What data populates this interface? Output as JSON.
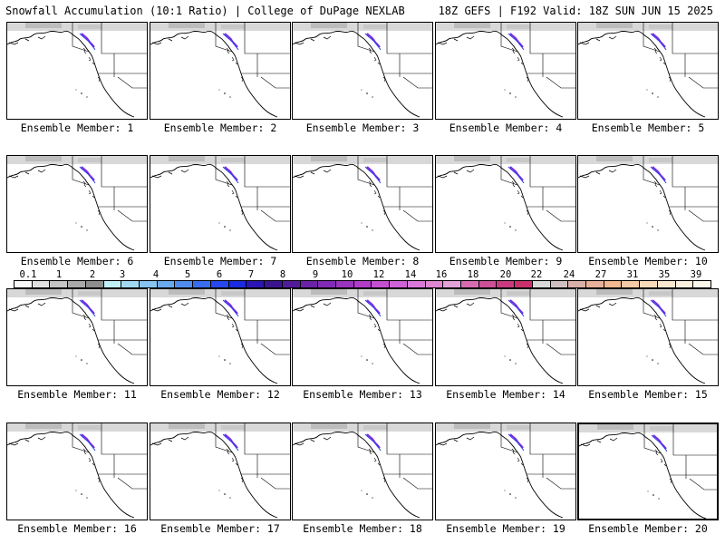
{
  "header": {
    "left": "Snowfall Accumulation (10:1 Ratio) | College of DuPage NEXLAB",
    "right": "18Z GEFS | F192 Valid: 18Z SUN JUN 15 2025"
  },
  "colorbar": {
    "labels": [
      "0.1",
      "1",
      "2",
      "3",
      "4",
      "5",
      "6",
      "7",
      "8",
      "9",
      "10",
      "12",
      "14",
      "16",
      "18",
      "20",
      "22",
      "24",
      "27",
      "31",
      "35",
      "39"
    ],
    "colors": [
      "#f7f7f7",
      "#e0e0e0",
      "#c4c4c4",
      "#a9a9a9",
      "#8e8e8e",
      "#bfeff7",
      "#a0d8f2",
      "#86c3f0",
      "#6aa9ee",
      "#4f8cf0",
      "#3a6cf0",
      "#2748ee",
      "#1a2be0",
      "#2a16b5",
      "#3a148f",
      "#511a9a",
      "#6a22a8",
      "#8229b5",
      "#9a33bf",
      "#b23cc8",
      "#c44ed0",
      "#cf62d6",
      "#d978da",
      "#de86d0",
      "#e0a0d8",
      "#d66bb0",
      "#cd4f96",
      "#c93a80",
      "#c9306b",
      "#d8d8d8",
      "#cfc0c0",
      "#d8b0a8",
      "#e8b09a",
      "#f2b890",
      "#f6c9a6",
      "#f8dabb",
      "#f9e6cf",
      "#faeedd",
      "#fbf6ec"
    ]
  },
  "members": [
    {
      "label": "Ensemble Member: 1"
    },
    {
      "label": "Ensemble Member: 2"
    },
    {
      "label": "Ensemble Member: 3"
    },
    {
      "label": "Ensemble Member: 4"
    },
    {
      "label": "Ensemble Member: 5"
    },
    {
      "label": "Ensemble Member: 6"
    },
    {
      "label": "Ensemble Member: 7"
    },
    {
      "label": "Ensemble Member: 8"
    },
    {
      "label": "Ensemble Member: 9"
    },
    {
      "label": "Ensemble Member: 10"
    },
    {
      "label": "Ensemble Member: 11"
    },
    {
      "label": "Ensemble Member: 12"
    },
    {
      "label": "Ensemble Member: 13"
    },
    {
      "label": "Ensemble Member: 14"
    },
    {
      "label": "Ensemble Member: 15"
    },
    {
      "label": "Ensemble Member: 16"
    },
    {
      "label": "Ensemble Member: 17"
    },
    {
      "label": "Ensemble Member: 18"
    },
    {
      "label": "Ensemble Member: 19"
    },
    {
      "label": "Ensemble Member: 20"
    }
  ]
}
